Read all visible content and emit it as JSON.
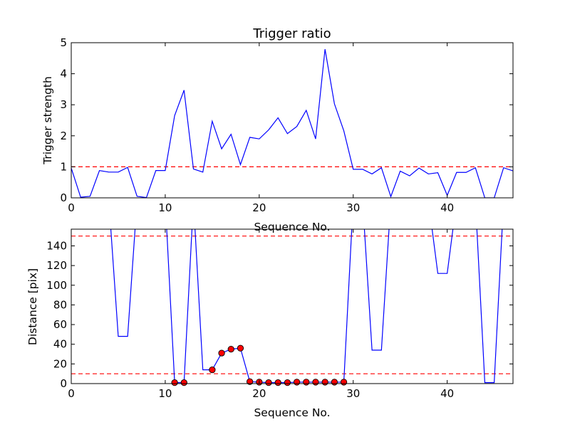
{
  "chart_data": [
    {
      "type": "line",
      "title": "Trigger ratio",
      "xlabel": "Sequence No.",
      "ylabel": "Trigger strength",
      "xlim": [
        0,
        47
      ],
      "ylim": [
        0,
        5
      ],
      "xticks": [
        "0",
        "10",
        "20",
        "30",
        "40"
      ],
      "yticks": [
        "0",
        "1",
        "2",
        "3",
        "4",
        "5"
      ],
      "series": [
        {
          "color": "#0000ff",
          "x": [
            0,
            1,
            2,
            3,
            4,
            5,
            6,
            7,
            8,
            9,
            10,
            11,
            12,
            13,
            14,
            15,
            16,
            17,
            18,
            19,
            20,
            21,
            22,
            23,
            24,
            25,
            26,
            27,
            28,
            29,
            30,
            31,
            32,
            33,
            34,
            35,
            36,
            37,
            38,
            39,
            40,
            41,
            42,
            43,
            44,
            45,
            46,
            47
          ],
          "values": [
            0.96,
            0.02,
            0.05,
            0.88,
            0.83,
            0.83,
            0.98,
            0.05,
            0.01,
            0.88,
            0.88,
            2.65,
            3.47,
            0.93,
            0.83,
            2.47,
            1.58,
            2.05,
            1.07,
            1.95,
            1.9,
            2.19,
            2.58,
            2.07,
            2.3,
            2.82,
            1.9,
            4.79,
            3.03,
            2.16,
            0.92,
            0.92,
            0.77,
            0.97,
            0.04,
            0.86,
            0.71,
            0.96,
            0.77,
            0.81,
            0.08,
            0.82,
            0.82,
            0.97,
            0.0,
            0.0,
            0.97,
            0.87
          ]
        }
      ],
      "reference_lines": [
        {
          "y": 1,
          "color": "#ff0000",
          "style": "dashed"
        }
      ],
      "grid": false
    },
    {
      "type": "line",
      "title": "",
      "xlabel": "Sequence No.",
      "ylabel": "Distance [pix]",
      "xlim": [
        0,
        47
      ],
      "ylim": [
        0,
        157
      ],
      "xticks": [
        "0",
        "10",
        "20",
        "30",
        "40"
      ],
      "yticks": [
        "0",
        "20",
        "40",
        "60",
        "80",
        "100",
        "120",
        "140"
      ],
      "series": [
        {
          "color": "#0000ff",
          "x": [
            0,
            1,
            2,
            3,
            4,
            5,
            6,
            7,
            8,
            9,
            10,
            11,
            12,
            13,
            14,
            15,
            16,
            17,
            18,
            19,
            20,
            21,
            22,
            23,
            24,
            25,
            26,
            27,
            28,
            29,
            30,
            31,
            32,
            33,
            34,
            35,
            36,
            37,
            38,
            39,
            40,
            41,
            42,
            43,
            44,
            45,
            46,
            47
          ],
          "values": [
            null,
            null,
            null,
            null,
            null,
            48,
            48,
            null,
            null,
            null,
            null,
            1,
            1,
            null,
            14,
            14,
            31,
            35,
            36,
            2,
            1.5,
            1,
            1,
            1,
            1.5,
            1.5,
            1.5,
            1.5,
            1.5,
            1.5,
            null,
            null,
            34,
            34,
            null,
            null,
            null,
            null,
            null,
            112,
            112,
            null,
            null,
            null,
            1,
            1,
            null,
            null
          ]
        }
      ],
      "markers": {
        "color": "#ff0000",
        "x": [
          11,
          12,
          15,
          16,
          17,
          18,
          19,
          20,
          21,
          22,
          23,
          24,
          25,
          26,
          27,
          28,
          29
        ],
        "values": [
          1,
          1,
          14,
          31,
          35,
          36,
          2,
          1.5,
          1,
          1,
          1,
          1.5,
          1.5,
          1.5,
          1.5,
          1.5,
          1.5
        ]
      },
      "reference_lines": [
        {
          "y": 150,
          "color": "#ff0000",
          "style": "dashed"
        },
        {
          "y": 10,
          "color": "#ff0000",
          "style": "dashed"
        }
      ],
      "grid": false
    }
  ]
}
